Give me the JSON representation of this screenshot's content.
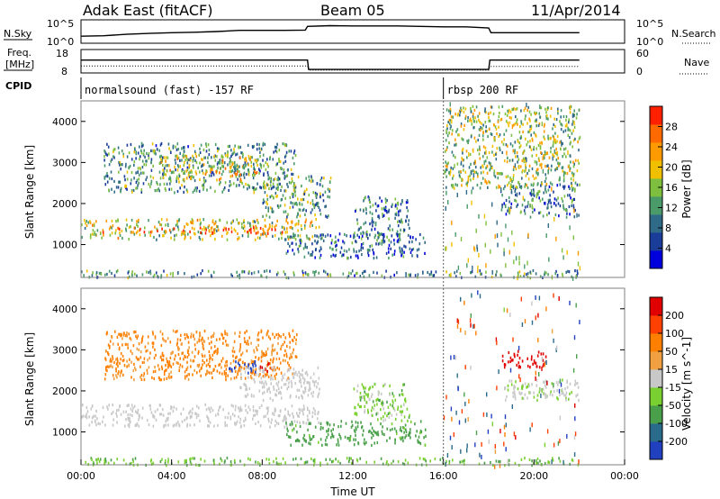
{
  "header": {
    "station": "Adak East (fitACF)",
    "beam": "Beam 05",
    "date": "11/Apr/2014"
  },
  "strips": {
    "nsky_label": "N.Sky",
    "nsky_ticks": [
      "10^5",
      "10^0"
    ],
    "nsearch_label": "N.Search",
    "nsearch_ticks": [
      "10^5",
      "10^0"
    ],
    "freq_label_line1": "Freq.",
    "freq_label_line2": "[MHz]",
    "freq_ticks": [
      "18",
      "8"
    ],
    "nave_label": "Nave",
    "nave_ticks": [
      "60",
      "0"
    ],
    "cpid_label": "CPID",
    "cpid_segments": [
      {
        "label": "normalsound (fast) -157 RF",
        "start_h": 0,
        "end_h": 16
      },
      {
        "label": "rbsp 200 RF",
        "start_h": 16,
        "end_h": 22
      }
    ]
  },
  "chart_data": [
    {
      "type": "heatmap",
      "name": "power",
      "xlabel": "",
      "ylabel": "Slant Range [km]",
      "xlim": [
        0,
        24
      ],
      "ylim": [
        200,
        4500
      ],
      "yticks": [
        "1000",
        "2000",
        "3000",
        "4000"
      ],
      "colorbar": {
        "label": "Power [dB]",
        "ticks": [
          "4",
          "8",
          "12",
          "16",
          "20",
          "24",
          "28"
        ],
        "range": [
          0,
          32
        ],
        "colors": [
          "#0000dd",
          "#1a3d9a",
          "#2f6a88",
          "#4a9a6a",
          "#7fbf3f",
          "#f0c000",
          "#ff9a00",
          "#ff6a00",
          "#ff2000"
        ]
      },
      "regions": [
        {
          "t0": 0.0,
          "t1": 10.5,
          "r0": 1150,
          "r1": 1650,
          "level": 0.55
        },
        {
          "t0": 0.8,
          "t1": 9.2,
          "r0": 1300,
          "r1": 1450,
          "level": 0.85
        },
        {
          "t0": 1.0,
          "t1": 9.5,
          "r0": 2300,
          "r1": 3500,
          "level": 0.35
        },
        {
          "t0": 3.5,
          "t1": 8.0,
          "r0": 2600,
          "r1": 3200,
          "level": 0.6
        },
        {
          "t0": 8.0,
          "t1": 11.0,
          "r0": 1700,
          "r1": 2700,
          "level": 0.4
        },
        {
          "t0": 9.0,
          "t1": 15.2,
          "r0": 700,
          "r1": 1300,
          "level": 0.25
        },
        {
          "t0": 12.0,
          "t1": 14.5,
          "r0": 1200,
          "r1": 2200,
          "level": 0.3
        },
        {
          "t0": 0.0,
          "t1": 22.0,
          "r0": 220,
          "r1": 400,
          "level": 0.35
        },
        {
          "t0": 18.5,
          "t1": 22.0,
          "r0": 1700,
          "r1": 2500,
          "level": 0.3
        },
        {
          "t0": 16.0,
          "t1": 22.0,
          "r0": 2400,
          "r1": 4400,
          "level": 0.5
        }
      ]
    },
    {
      "type": "heatmap",
      "name": "velocity",
      "xlabel": "Time UT",
      "ylabel": "Slant Range [km]",
      "xlim": [
        0,
        24
      ],
      "ylim": [
        200,
        4500
      ],
      "xticks": [
        "00:00",
        "04:00",
        "08:00",
        "12:00",
        "16:00",
        "20:00",
        "00:00"
      ],
      "yticks": [
        "1000",
        "2000",
        "3000",
        "4000"
      ],
      "colorbar": {
        "label": "Velocity [m s^-1]",
        "ticks": [
          "200",
          "100",
          "50",
          "15",
          "-15",
          "-50",
          "-100",
          "-200"
        ],
        "range": [
          -250,
          250
        ],
        "colors": [
          "#2040c0",
          "#2a6a8a",
          "#4aa04a",
          "#7ad030",
          "#c8c8c8",
          "#f0a040",
          "#ff8000",
          "#ff4000",
          "#e00000"
        ]
      },
      "regions": [
        {
          "t0": 0.0,
          "t1": 10.5,
          "r0": 1150,
          "r1": 1700,
          "vel": 0
        },
        {
          "t0": 1.0,
          "t1": 9.5,
          "r0": 2300,
          "r1": 3500,
          "vel": -40
        },
        {
          "t0": 6.5,
          "t1": 7.8,
          "r0": 2450,
          "r1": 2750,
          "vel": 210
        },
        {
          "t0": 7.8,
          "t1": 8.4,
          "r0": 2500,
          "r1": 2700,
          "vel": -180
        },
        {
          "t0": 7.0,
          "t1": 10.5,
          "r0": 1800,
          "r1": 2600,
          "vel": 0
        },
        {
          "t0": 9.0,
          "t1": 15.2,
          "r0": 700,
          "r1": 1300,
          "vel": 45
        },
        {
          "t0": 12.0,
          "t1": 14.5,
          "r0": 1300,
          "r1": 2200,
          "vel": 20
        },
        {
          "t0": 0.0,
          "t1": 22.0,
          "r0": 220,
          "r1": 400,
          "vel": 30
        },
        {
          "t0": 18.5,
          "t1": 22.0,
          "r0": 1800,
          "r1": 2300,
          "vel": 8
        },
        {
          "t0": 18.5,
          "t1": 20.5,
          "r0": 2600,
          "r1": 3000,
          "vel": -190
        }
      ]
    }
  ],
  "nsky_trace": [
    [
      0,
      0.3
    ],
    [
      1,
      0.32
    ],
    [
      2,
      0.38
    ],
    [
      3,
      0.42
    ],
    [
      4,
      0.45
    ],
    [
      5,
      0.47
    ],
    [
      6,
      0.5
    ],
    [
      7,
      0.55
    ],
    [
      8,
      0.55
    ],
    [
      9,
      0.55
    ],
    [
      9.9,
      0.56
    ],
    [
      10,
      0.72
    ],
    [
      11,
      0.75
    ],
    [
      12,
      0.74
    ],
    [
      14,
      0.74
    ],
    [
      16,
      0.7
    ],
    [
      17,
      0.7
    ],
    [
      18,
      0.65
    ],
    [
      18.1,
      0.45
    ],
    [
      20,
      0.45
    ],
    [
      22,
      0.45
    ]
  ],
  "freq_trace": [
    [
      0,
      0.55
    ],
    [
      10,
      0.55
    ],
    [
      10.05,
      0.15
    ],
    [
      16,
      0.15
    ],
    [
      18,
      0.15
    ],
    [
      18.05,
      0.55
    ],
    [
      22,
      0.55
    ]
  ],
  "nave_trace": [
    [
      0,
      0.3
    ],
    [
      10,
      0.3
    ],
    [
      10.05,
      0.12
    ],
    [
      18,
      0.12
    ],
    [
      18.05,
      0.28
    ],
    [
      22,
      0.28
    ]
  ],
  "colors": {
    "axis": "#000000",
    "panel_border": "#808080",
    "divider": "#606060"
  }
}
